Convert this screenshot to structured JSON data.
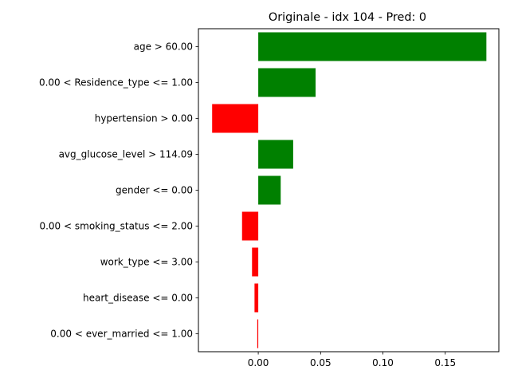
{
  "chart_data": {
    "type": "bar",
    "orientation": "horizontal",
    "title": "Originale - idx 104 - Pred: 0",
    "xlabel": "",
    "ylabel": "",
    "categories": [
      "age > 60.00",
      "0.00 < Residence_type <= 1.00",
      "hypertension > 0.00",
      "avg_glucose_level > 114.09",
      "gender <= 0.00",
      "0.00 < smoking_status <= 2.00",
      "work_type <= 3.00",
      "heart_disease <= 0.00",
      "0.00 < ever_married <= 1.00"
    ],
    "values": [
      0.183,
      0.046,
      -0.037,
      0.028,
      0.018,
      -0.013,
      -0.005,
      -0.003,
      -0.0008
    ],
    "xlim": [
      -0.048,
      0.193
    ],
    "xticks": [
      0.0,
      0.05,
      0.1,
      0.15
    ],
    "xtick_labels": [
      "0.00",
      "0.05",
      "0.10",
      "0.15"
    ],
    "positive_color": "#008000",
    "negative_color": "#ff0000",
    "grid": false,
    "legend": "none"
  }
}
